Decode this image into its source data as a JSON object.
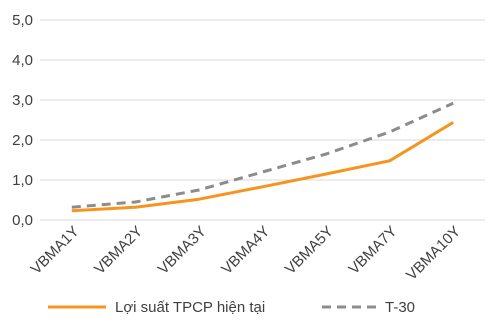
{
  "chart_data": {
    "type": "line",
    "title": "",
    "xlabel": "",
    "ylabel": "",
    "categories": [
      "VBMA1Y",
      "VBMA2Y",
      "VBMA3Y",
      "VBMA4Y",
      "VBMA5Y",
      "VBMA7Y",
      "VBMA10Y"
    ],
    "ylim": [
      0,
      5
    ],
    "yticks": [
      "0,0",
      "1,0",
      "2,0",
      "3,0",
      "4,0",
      "5,0"
    ],
    "grid": true,
    "legend_position": "bottom",
    "series": [
      {
        "name": "Lợi suất TPCP hiện tại",
        "color": "#F7941D",
        "dash": "solid",
        "values": [
          0.23,
          0.32,
          0.52,
          0.83,
          1.15,
          1.48,
          2.44
        ]
      },
      {
        "name": "T-30",
        "color": "#8C8C8C",
        "dash": "dashed",
        "values": [
          0.32,
          0.45,
          0.75,
          1.2,
          1.65,
          2.2,
          2.92
        ]
      }
    ]
  }
}
